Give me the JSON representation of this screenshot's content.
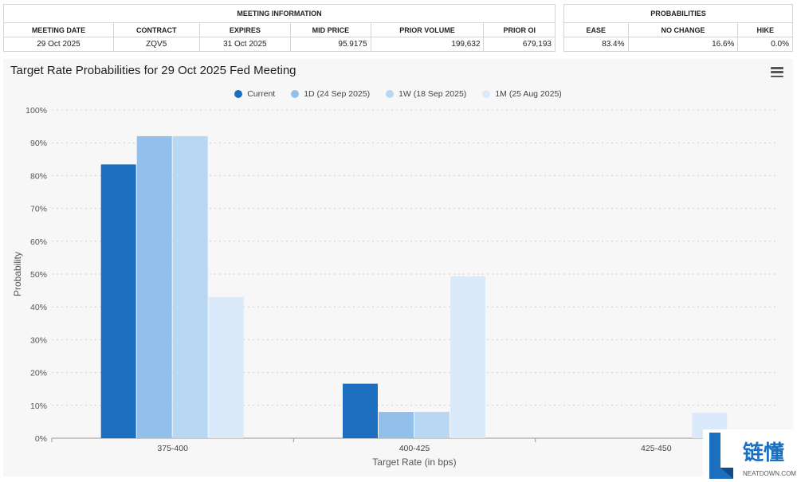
{
  "meeting_info": {
    "title": "MEETING INFORMATION",
    "headers": [
      "MEETING DATE",
      "CONTRACT",
      "EXPIRES",
      "MID PRICE",
      "PRIOR VOLUME",
      "PRIOR OI"
    ],
    "row": [
      "29 Oct 2025",
      "ZQV5",
      "31 Oct 2025",
      "95.9175",
      "199,632",
      "679,193"
    ]
  },
  "probabilities": {
    "title": "PROBABILITIES",
    "headers": [
      "EASE",
      "NO CHANGE",
      "HIKE"
    ],
    "row": [
      "83.4%",
      "16.6%",
      "0.0%"
    ]
  },
  "watermark": {
    "text": "链懂",
    "sub": "NEATDOWN.COM"
  },
  "chart_data": {
    "type": "bar",
    "title": "Target Rate Probabilities for 29 Oct 2025 Fed Meeting",
    "xlabel": "Target Rate (in bps)",
    "ylabel": "Probability",
    "categories": [
      "375-400",
      "400-425",
      "425-450"
    ],
    "ylim": [
      0,
      100
    ],
    "yticks": [
      "0%",
      "10%",
      "20%",
      "30%",
      "40%",
      "50%",
      "60%",
      "70%",
      "80%",
      "90%",
      "100%"
    ],
    "grid": true,
    "legend_position": "top-center",
    "series": [
      {
        "name": "Current",
        "color": "#1c6fbf",
        "values": [
          83.4,
          16.6,
          0.0
        ]
      },
      {
        "name": "1D (24 Sep 2025)",
        "color": "#93c0ea",
        "values": [
          92.0,
          8.0,
          0.0
        ]
      },
      {
        "name": "1W (18 Sep 2025)",
        "color": "#b8d7f3",
        "values": [
          92.0,
          8.0,
          0.0
        ]
      },
      {
        "name": "1M (25 Aug 2025)",
        "color": "#dbeafa",
        "values": [
          43.0,
          49.3,
          7.7
        ]
      }
    ]
  }
}
